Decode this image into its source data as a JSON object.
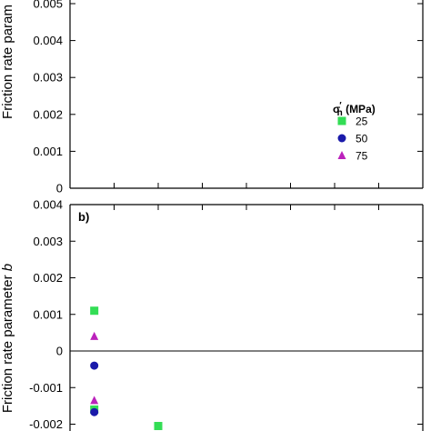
{
  "chart_data": [
    {
      "type": "scatter",
      "panel_label": "",
      "ylabel": "Friction rate param",
      "ylim": [
        0,
        0.005
      ],
      "yticks": [
        "0.005",
        "0.004",
        "0.003",
        "0.002",
        "0.001",
        "0"
      ],
      "ytick_values": [
        0.005,
        0.004,
        0.003,
        0.002,
        0.001,
        0
      ],
      "xlim": [
        0,
        8
      ],
      "xticks": [
        1,
        2,
        3,
        4,
        5,
        6,
        7
      ],
      "series": [],
      "legend": {
        "title_sigma": "σ",
        "title_prime": "′",
        "title_sub": "n",
        "title_rest": " (MPa)",
        "placement": "lower-right",
        "entries": [
          {
            "label": "25",
            "marker": "square",
            "color": "#33dd55"
          },
          {
            "label": "50",
            "marker": "circle",
            "color": "#1a1aaa"
          },
          {
            "label": "75",
            "marker": "triangle",
            "color": "#bb22bb"
          }
        ]
      }
    },
    {
      "type": "scatter",
      "panel_label": "b)",
      "ylabel": "Friction rate parameter b",
      "ylabel_main": "Friction rate parameter ",
      "ylabel_var": "b",
      "ylim": [
        -0.0022,
        0.004
      ],
      "yticks": [
        "0.004",
        "0.003",
        "0.002",
        "0.001",
        "0",
        "-0.001",
        "-0.002"
      ],
      "ytick_values": [
        0.004,
        0.003,
        0.002,
        0.001,
        0,
        -0.001,
        -0.002
      ],
      "zero_line": true,
      "xlim": [
        0,
        8
      ],
      "xticks": [
        1,
        2,
        3,
        4,
        5,
        6,
        7
      ],
      "series": [
        {
          "marker": "square",
          "color": "#33dd55",
          "points": [
            [
              0.55,
              0.0011
            ],
            [
              0.55,
              -0.0016
            ],
            [
              2.0,
              -0.00205
            ]
          ]
        },
        {
          "marker": "circle",
          "color": "#1a1aaa",
          "points": [
            [
              0.55,
              -0.0004
            ],
            [
              0.55,
              -0.00167
            ]
          ]
        },
        {
          "marker": "triangle",
          "color": "#bb22bb",
          "points": [
            [
              0.55,
              0.0004
            ],
            [
              0.55,
              -0.00135
            ]
          ]
        }
      ]
    }
  ]
}
